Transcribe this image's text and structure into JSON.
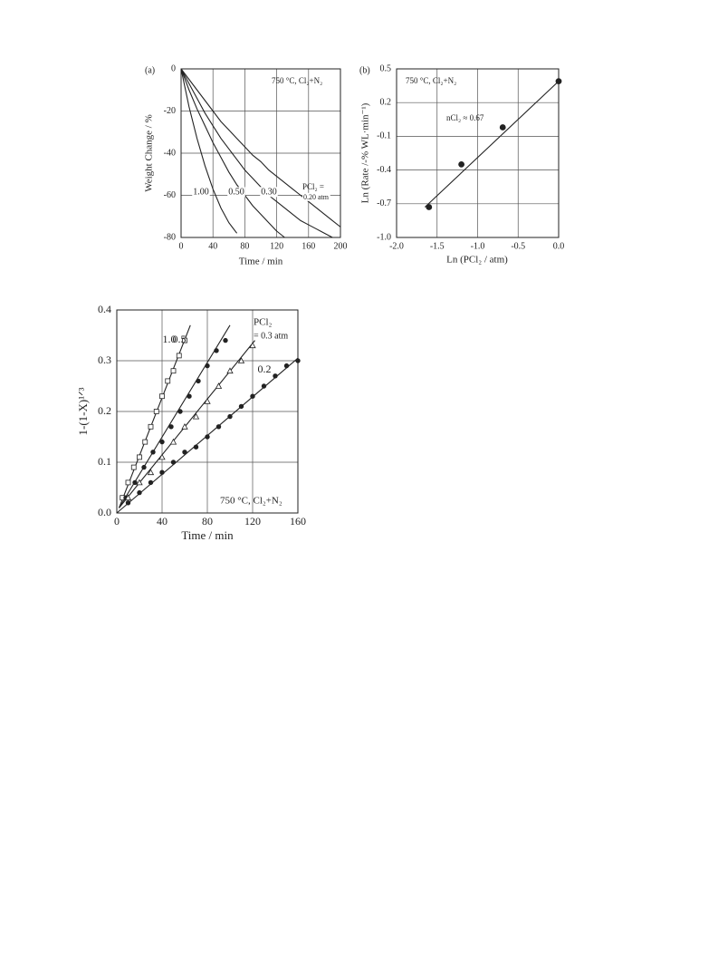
{
  "chart_data": [
    {
      "type": "line",
      "panel": "(a)",
      "xlabel": "Time / min",
      "ylabel": "Weight Change / %",
      "annotations": [
        "750 °C, Cl₂+N₂",
        "PCl₂ ="
      ],
      "x": [
        0,
        10,
        20,
        30,
        40,
        50,
        60,
        70,
        80,
        90,
        100,
        110,
        120,
        130,
        140,
        150,
        160,
        170,
        180,
        190,
        200
      ],
      "series": [
        {
          "name": "1.00",
          "values": [
            0,
            -18,
            -33,
            -46,
            -57,
            -66,
            -73,
            -78,
            null,
            null,
            null,
            null,
            null,
            null,
            null,
            null,
            null,
            null,
            null,
            null,
            null
          ]
        },
        {
          "name": "0.50",
          "values": [
            0,
            -10,
            -19,
            -27,
            -35,
            -42,
            -49,
            -55,
            -60,
            -65,
            -69,
            -73,
            -77,
            -80,
            null,
            null,
            null,
            null,
            null,
            null,
            null
          ]
        },
        {
          "name": "0.30",
          "values": [
            0,
            -7,
            -14,
            -21,
            -27,
            -33,
            -38,
            -43,
            -48,
            -52,
            -56,
            -60,
            -63,
            -66,
            -69,
            -72,
            -74,
            -76,
            -78,
            -80,
            null
          ]
        },
        {
          "name": "0.20 atm",
          "values": [
            0,
            -5,
            -10,
            -15,
            -20,
            -25,
            -29,
            -33,
            -37,
            -41,
            -44,
            -48,
            -51,
            -54,
            -57,
            -60,
            -63,
            -66,
            -69,
            -72,
            -75
          ]
        }
      ],
      "color": "#222222",
      "xlim": [
        0,
        200
      ],
      "xticks": [
        0,
        40,
        80,
        120,
        160,
        200
      ],
      "ylim": [
        -80,
        0
      ],
      "yticks": [
        0,
        -20,
        -40,
        -60,
        -80
      ],
      "grid": true
    },
    {
      "type": "scatter",
      "panel": "(b)",
      "xlabel": "Ln (PCl₂ / atm)",
      "ylabel": "Ln (Rate /-% WL·min⁻¹)",
      "annotations": [
        "750 °C, Cl₂+N₂",
        "nCl₂ ≈ 0.67"
      ],
      "series": [
        {
          "x": [
            -1.6,
            -1.2,
            -0.69,
            0
          ],
          "values": [
            -0.73,
            -0.35,
            -0.02,
            0.39
          ],
          "marker": "dot"
        }
      ],
      "fit": {
        "x": [
          -1.65,
          0
        ],
        "y": [
          -0.73,
          0.39
        ]
      },
      "color": "#222222",
      "xlim": [
        -2,
        0
      ],
      "xticks": [
        {
          "value": -2,
          "label": "-2.0"
        },
        -1.5,
        {
          "value": -1,
          "label": "-1.0"
        },
        -0.5,
        {
          "value": 0,
          "label": "0.0"
        }
      ],
      "ylim": [
        -1,
        0.5
      ],
      "yticks": [
        0.5,
        0.2,
        -0.1,
        -0.4,
        -0.7,
        {
          "value": -1,
          "label": "-1.0"
        }
      ],
      "grid": true
    },
    {
      "type": "scatter",
      "xlabel": "Time / min",
      "ylabel": "1-(1-X)¹ᐟ³",
      "annotations": [
        "750 °C, Cl₂+N₂",
        "PCl₂"
      ],
      "series": [
        {
          "name": "1.0",
          "marker": "square-open",
          "x": [
            5,
            10,
            15,
            20,
            25,
            30,
            35,
            40,
            45,
            50,
            55,
            60
          ],
          "values": [
            0.03,
            0.06,
            0.09,
            0.11,
            0.14,
            0.17,
            0.2,
            0.23,
            0.26,
            0.28,
            0.31,
            0.34
          ],
          "fit": {
            "x": [
              2,
              65
            ],
            "y": [
              0.01,
              0.37
            ]
          }
        },
        {
          "name": "0.5",
          "marker": "dot",
          "x": [
            8,
            16,
            24,
            32,
            40,
            48,
            56,
            64,
            72,
            80,
            88,
            96
          ],
          "values": [
            0.03,
            0.06,
            0.09,
            0.12,
            0.14,
            0.17,
            0.2,
            0.23,
            0.26,
            0.29,
            0.32,
            0.34
          ],
          "fit": {
            "x": [
              2,
              100
            ],
            "y": [
              0.01,
              0.37
            ]
          }
        },
        {
          "name": "= 0.3 atm",
          "marker": "triangle-open",
          "x": [
            10,
            20,
            30,
            40,
            50,
            60,
            70,
            80,
            90,
            100,
            110,
            120
          ],
          "values": [
            0.03,
            0.06,
            0.08,
            0.11,
            0.14,
            0.17,
            0.19,
            0.22,
            0.25,
            0.28,
            0.3,
            0.33
          ],
          "fit": {
            "x": [
              2,
              122
            ],
            "y": [
              0.01,
              0.34
            ]
          }
        },
        {
          "name": "0.2",
          "marker": "dot",
          "x": [
            10,
            20,
            30,
            40,
            50,
            60,
            70,
            80,
            90,
            100,
            110,
            120,
            130,
            140,
            150,
            160
          ],
          "values": [
            0.02,
            0.04,
            0.06,
            0.08,
            0.1,
            0.12,
            0.13,
            0.15,
            0.17,
            0.19,
            0.21,
            0.23,
            0.25,
            0.27,
            0.29,
            0.3
          ],
          "fit": {
            "x": [
              0,
              160
            ],
            "y": [
              0,
              0.305
            ]
          }
        }
      ],
      "color": "#222222",
      "xlim": [
        0,
        160
      ],
      "xticks": [
        0,
        40,
        80,
        120,
        160
      ],
      "ylim": [
        0,
        0.4
      ],
      "yticks": [
        {
          "value": 0,
          "label": "0.0"
        },
        0.1,
        0.2,
        0.3,
        0.4
      ],
      "grid": true
    }
  ]
}
